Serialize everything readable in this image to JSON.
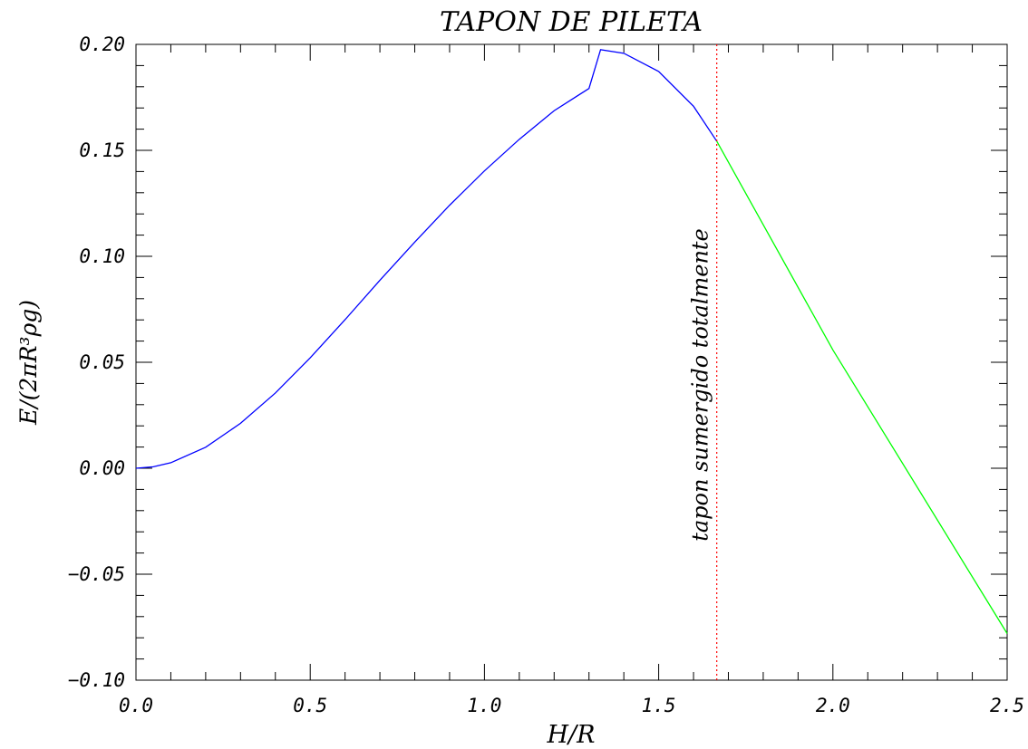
{
  "chart_data": {
    "type": "line",
    "title": "TAPON DE PILETA",
    "xlabel": "H/R",
    "ylabel": "E/(2πR³ρg)",
    "xlim": [
      0.0,
      2.5
    ],
    "ylim": [
      -0.1,
      0.2
    ],
    "x_ticks": [
      "0.0",
      "0.5",
      "1.0",
      "1.5",
      "2.0",
      "2.5"
    ],
    "y_ticks": [
      "−0.10",
      "−0.05",
      "0.00",
      "0.05",
      "0.10",
      "0.15",
      "0.20"
    ],
    "x_tick_values": [
      0.0,
      0.5,
      1.0,
      1.5,
      2.0,
      2.5
    ],
    "y_tick_values": [
      -0.1,
      -0.05,
      0.0,
      0.05,
      0.1,
      0.15,
      0.2
    ],
    "grid": false,
    "series": [
      {
        "color": "#0000ff",
        "x": [
          0.0,
          0.05,
          0.1,
          0.2,
          0.3,
          0.4,
          0.5,
          0.6,
          0.7,
          0.8,
          0.9,
          1.0,
          1.1,
          1.2,
          1.3,
          1.3333,
          1.4,
          1.5,
          1.6,
          1.6667
        ],
        "y": [
          0.0,
          0.0007,
          0.0026,
          0.0099,
          0.0212,
          0.0355,
          0.0521,
          0.0701,
          0.0887,
          0.1067,
          0.1241,
          0.1403,
          0.1552,
          0.1687,
          0.1792,
          0.1975,
          0.1958,
          0.1872,
          0.1708,
          0.1543
        ]
      },
      {
        "color": "#00ff00",
        "x": [
          1.6667,
          2.0,
          2.5
        ],
        "y": [
          0.1543,
          0.0558,
          -0.078
        ]
      }
    ],
    "annotations": [
      {
        "type": "vline",
        "x": 1.6667,
        "color": "#ff0000",
        "style": "dotted",
        "text": "tapon sumergido totalmente"
      }
    ]
  }
}
